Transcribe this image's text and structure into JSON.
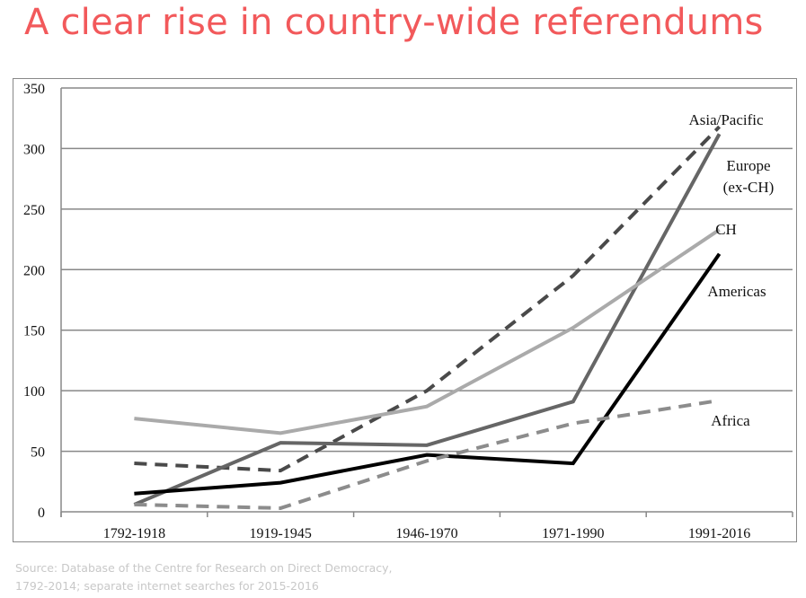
{
  "title": "A clear rise in country-wide referendums",
  "source_lines": [
    "Source: Database of the Centre for Research on Direct Democracy,",
    "1792-2014; separate internet searches for 2015-2016"
  ],
  "chart_data": {
    "type": "line",
    "title": "A clear rise in country-wide referendums",
    "xlabel": "",
    "ylabel": "",
    "categories": [
      "1792-1918",
      "1919-1945",
      "1946-1970",
      "1971-1990",
      "1991-2016"
    ],
    "ylim": [
      0,
      350
    ],
    "yticks": [
      0,
      50,
      100,
      150,
      200,
      250,
      300,
      350
    ],
    "grid": true,
    "legend": "inline labels at right end of lines",
    "series": [
      {
        "name": "Asia/Pacific",
        "values": [
          40,
          34,
          100,
          195,
          318
        ],
        "color": "#4a4a4a",
        "dash": "dashed"
      },
      {
        "name": "Europe (ex-CH)",
        "label_lines": [
          "Europe",
          "(ex-CH)"
        ],
        "values": [
          6,
          57,
          55,
          91,
          312
        ],
        "color": "#666666",
        "dash": "solid"
      },
      {
        "name": "CH",
        "values": [
          77,
          65,
          87,
          152,
          233
        ],
        "color": "#aaaaaa",
        "dash": "solid"
      },
      {
        "name": "Americas",
        "values": [
          15,
          24,
          47,
          40,
          213
        ],
        "color": "#000000",
        "dash": "solid"
      },
      {
        "name": "Africa",
        "values": [
          6,
          3,
          42,
          73,
          92
        ],
        "color": "#8c8c8c",
        "dash": "dashed"
      }
    ]
  }
}
